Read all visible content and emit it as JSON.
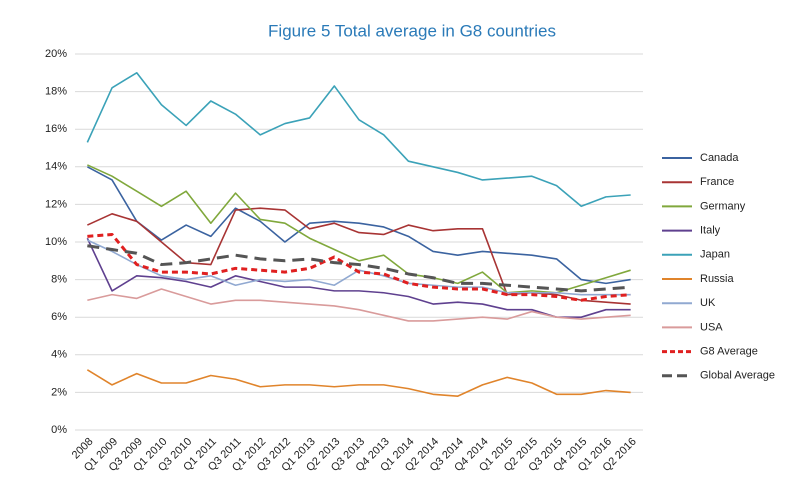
{
  "chart_data": {
    "type": "line",
    "title": "Figure 5 Total average in G8 countries",
    "categories": [
      "2008",
      "Q1 2009",
      "Q3 2009",
      "Q1 2010",
      "Q3 2010",
      "Q1 2011",
      "Q3 2011",
      "Q1 2012",
      "Q3 2012",
      "Q1 2013",
      "Q2 2013",
      "Q3 2013",
      "Q4 2013",
      "Q1 2014",
      "Q2 2014",
      "Q3 2014",
      "Q4 2014",
      "Q1 2015",
      "Q2 2015",
      "Q3 2015",
      "Q4 2015",
      "Q1 2016",
      "Q2 2016"
    ],
    "ylim": [
      0,
      20
    ],
    "yticks": [
      {
        "value": 0,
        "label": "0%"
      },
      {
        "value": 2,
        "label": "2%"
      },
      {
        "value": 4,
        "label": "4%"
      },
      {
        "value": 6,
        "label": "6%"
      },
      {
        "value": 8,
        "label": "8%"
      },
      {
        "value": 10,
        "label": "10%"
      },
      {
        "value": 12,
        "label": "12%"
      },
      {
        "value": 14,
        "label": "14%"
      },
      {
        "value": 16,
        "label": "16%"
      },
      {
        "value": 18,
        "label": "18%"
      },
      {
        "value": 20,
        "label": "20%"
      }
    ],
    "grid": true,
    "legend": "right",
    "series": [
      {
        "name": "Canada",
        "color": "#3b63a0",
        "dash": "solid",
        "values": [
          14.0,
          13.3,
          11.1,
          10.1,
          10.9,
          10.3,
          11.8,
          11.1,
          10.0,
          11.0,
          11.1,
          11.0,
          10.8,
          10.3,
          9.5,
          9.3,
          9.5,
          9.4,
          9.3,
          9.1,
          8.0,
          7.8,
          8.0
        ]
      },
      {
        "name": "France",
        "color": "#a83434",
        "dash": "solid",
        "values": [
          10.9,
          11.5,
          11.1,
          10.0,
          8.9,
          8.8,
          11.7,
          11.8,
          11.7,
          10.7,
          11.0,
          10.5,
          10.4,
          10.9,
          10.6,
          10.7,
          10.7,
          7.2,
          7.3,
          7.2,
          6.9,
          6.8,
          6.7
        ]
      },
      {
        "name": "Germany",
        "color": "#80a83c",
        "dash": "solid",
        "values": [
          14.1,
          13.5,
          12.7,
          11.9,
          12.7,
          11.0,
          12.6,
          11.2,
          11.0,
          10.2,
          9.6,
          9.0,
          9.3,
          8.3,
          8.1,
          7.8,
          8.4,
          7.3,
          7.4,
          7.3,
          7.7,
          8.1,
          8.5
        ]
      },
      {
        "name": "Italy",
        "color": "#5f408f",
        "dash": "solid",
        "values": [
          10.2,
          7.4,
          8.2,
          8.1,
          7.9,
          7.6,
          8.2,
          7.9,
          7.6,
          7.6,
          7.4,
          7.4,
          7.3,
          7.1,
          6.7,
          6.8,
          6.7,
          6.4,
          6.4,
          6.0,
          6.0,
          6.4,
          6.4
        ]
      },
      {
        "name": "Japan",
        "color": "#3ba2b8",
        "dash": "solid",
        "values": [
          15.3,
          18.2,
          19.0,
          17.3,
          16.2,
          17.5,
          16.8,
          15.7,
          16.3,
          16.6,
          18.3,
          16.5,
          15.7,
          14.3,
          14.0,
          13.7,
          13.3,
          13.4,
          13.5,
          13.0,
          11.9,
          12.4,
          12.5
        ]
      },
      {
        "name": "Russia",
        "color": "#e0842b",
        "dash": "solid",
        "values": [
          3.2,
          2.4,
          3.0,
          2.5,
          2.5,
          2.9,
          2.7,
          2.3,
          2.4,
          2.4,
          2.3,
          2.4,
          2.4,
          2.2,
          1.9,
          1.8,
          2.4,
          2.8,
          2.5,
          1.9,
          1.9,
          2.1,
          2.0
        ]
      },
      {
        "name": "UK",
        "color": "#91a9d1",
        "dash": "solid",
        "values": [
          10.1,
          9.5,
          8.8,
          8.2,
          8.0,
          8.2,
          7.7,
          8.0,
          7.9,
          8.0,
          7.7,
          8.5,
          8.2,
          7.8,
          7.7,
          7.6,
          7.6,
          7.3,
          7.3,
          7.3,
          7.2,
          7.2,
          7.2
        ]
      },
      {
        "name": "USA",
        "color": "#d99b9b",
        "dash": "solid",
        "values": [
          6.9,
          7.2,
          7.0,
          7.5,
          7.1,
          6.7,
          6.9,
          6.9,
          6.8,
          6.7,
          6.6,
          6.4,
          6.1,
          5.8,
          5.8,
          5.9,
          6.0,
          5.9,
          6.3,
          6.0,
          5.9,
          6.0,
          6.1
        ]
      },
      {
        "name": "G8 Average",
        "color": "#e02020",
        "dash": "dashed",
        "values": [
          10.3,
          10.4,
          8.8,
          8.4,
          8.4,
          8.3,
          8.6,
          8.5,
          8.4,
          8.6,
          9.2,
          8.4,
          8.3,
          7.8,
          7.6,
          7.5,
          7.5,
          7.2,
          7.2,
          7.1,
          6.9,
          7.1,
          7.2
        ]
      },
      {
        "name": "Global Average",
        "color": "#555555",
        "dash": "dashed",
        "values": [
          9.8,
          9.6,
          9.4,
          8.8,
          8.9,
          9.1,
          9.3,
          9.1,
          9.0,
          9.1,
          8.9,
          8.8,
          8.6,
          8.3,
          8.1,
          7.8,
          7.8,
          7.7,
          7.6,
          7.5,
          7.4,
          7.5,
          7.6
        ]
      }
    ]
  }
}
